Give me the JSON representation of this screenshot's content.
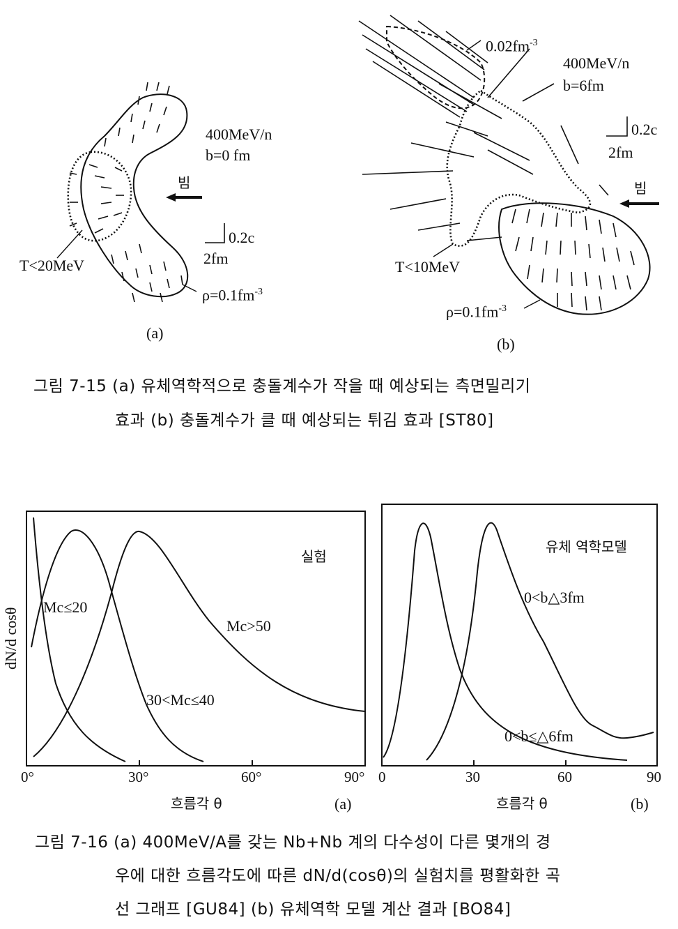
{
  "figure15": {
    "a": {
      "energy": "400MeV/n",
      "impact": "b=0 fm",
      "beam": "빔",
      "scale_v": "0.2c",
      "scale_l": "2fm",
      "temp": "T<20MeV",
      "density": "ρ=0.1fm",
      "density_exp": "-3",
      "panel": "(a)"
    },
    "b": {
      "contour": "0.02fm",
      "contour_exp": "-3",
      "energy": "400MeV/n",
      "impact": "b=6fm",
      "scale_v": "0.2c",
      "scale_l": "2fm",
      "beam": "빔",
      "temp": "T<10MeV",
      "density": "ρ=0.1fm",
      "density_exp": "-3",
      "panel": "(b)"
    },
    "caption_line1": "그림 7-15 (a) 유체역학적으로 충돌계수가 작을 때 예상되는 측면밀리기",
    "caption_line2": "효과 (b) 충돌계수가 클 때 예상되는 튀김 효과 [ST80]"
  },
  "figure16": {
    "ylabel": "dN/d cosθ",
    "a": {
      "tag": "실험",
      "xticks": [
        "0°",
        "30°",
        "60°",
        "90°"
      ],
      "xlabel": "흐름각 θ",
      "panel": "(a)",
      "curve1": "Mc≤20",
      "curve2": "30<Mc≤40",
      "curve3": "Mc>50"
    },
    "b": {
      "tag": "유체 역학모델",
      "xticks": [
        "0",
        "30",
        "60",
        "90"
      ],
      "xlabel": "흐름각 θ",
      "panel": "(b)",
      "curve1": "0<b△3fm",
      "curve2": "0<b≤△6fm"
    },
    "caption_line1": "그림 7-16 (a) 400MeV/A를 갖는 Nb+Nb 계의 다수성이 다른 몇개의 경",
    "caption_line2": "우에 대한 흐름각도에 따른 dN/d(cosθ)의 실험치를 평활화한 곡",
    "caption_line3": "선 그래프 [GU84] (b) 유체역학 모델 계산 결과 [BO84]"
  }
}
